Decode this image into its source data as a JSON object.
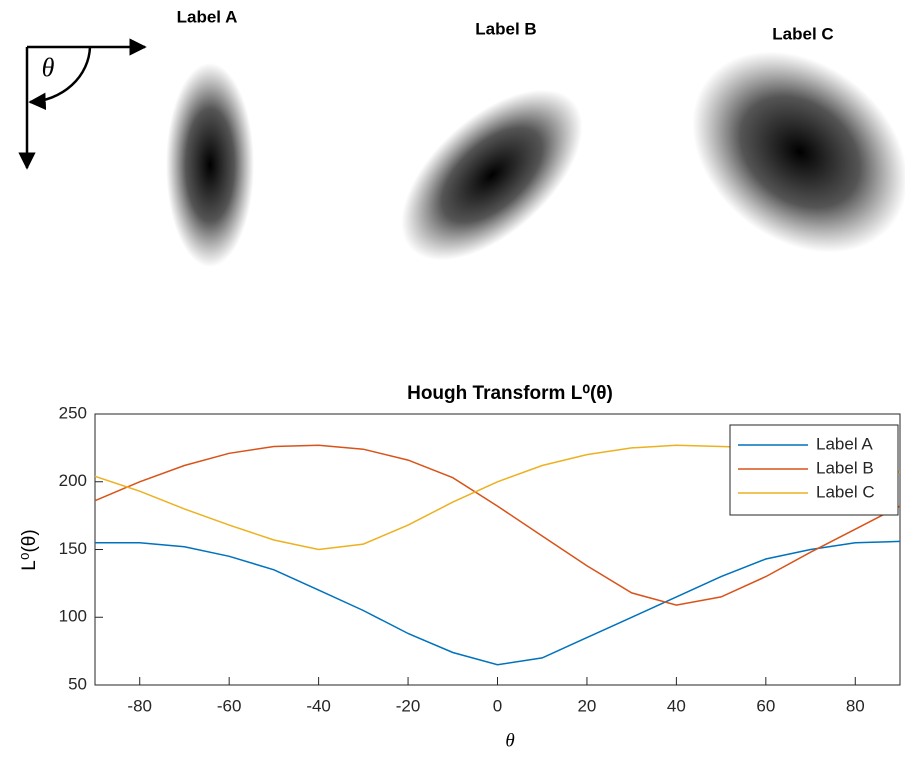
{
  "images": [
    {
      "label": "Label A"
    },
    {
      "label": "Label B"
    },
    {
      "label": "Label C"
    }
  ],
  "diagram_symbol": "θ",
  "chart_data": {
    "type": "line",
    "title": "Hough Transform L⁰(θ)",
    "x_label": "θ",
    "y_label": "L⁰(θ)",
    "x": [
      -90,
      -80,
      -70,
      -60,
      -50,
      -40,
      -30,
      -20,
      -10,
      0,
      10,
      20,
      30,
      40,
      50,
      60,
      70,
      80,
      90
    ],
    "series": [
      {
        "name": "Label A",
        "color": "#0072bd",
        "values": [
          155,
          155,
          152,
          145,
          135,
          120,
          105,
          88,
          74,
          65,
          70,
          85,
          100,
          115,
          130,
          143,
          150,
          155,
          156
        ]
      },
      {
        "name": "Label B",
        "color": "#d95319",
        "values": [
          186,
          200,
          212,
          221,
          226,
          227,
          224,
          216,
          203,
          182,
          160,
          138,
          118,
          109,
          115,
          130,
          148,
          165,
          182
        ]
      },
      {
        "name": "Label C",
        "color": "#edb120",
        "values": [
          204,
          193,
          180,
          168,
          157,
          150,
          154,
          168,
          185,
          200,
          212,
          220,
          225,
          227,
          226,
          225,
          222,
          215,
          207
        ]
      }
    ],
    "xlim": [
      -90,
      90
    ],
    "ylim": [
      50,
      250
    ],
    "xticks": [
      -80,
      -60,
      -40,
      -20,
      0,
      20,
      40,
      60,
      80
    ],
    "yticks": [
      50,
      100,
      150,
      200,
      250
    ],
    "grid": false,
    "legend": "upper-right"
  }
}
